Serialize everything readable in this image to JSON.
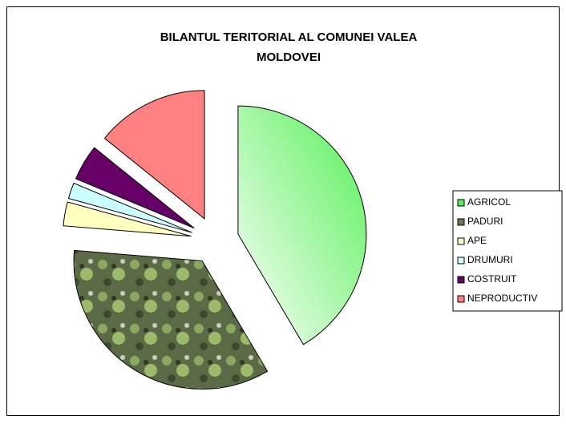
{
  "chart_data": {
    "type": "pie",
    "title": "BILANTUL TERITORIAL AL COMUNEI VALEA MOLDOVEI",
    "categories": [
      "AGRICOL",
      "PADURI",
      "APE",
      "DRUMURI",
      "COSTRUIT",
      "NEPRODUCTIV"
    ],
    "values": [
      41.5,
      34.8,
      3,
      2,
      4.5,
      14.2
    ],
    "colors": [
      "#55f055",
      "#6b7a55",
      "#ffffc0",
      "#ccffff",
      "#660066",
      "#ff8080"
    ],
    "legend": "right"
  }
}
